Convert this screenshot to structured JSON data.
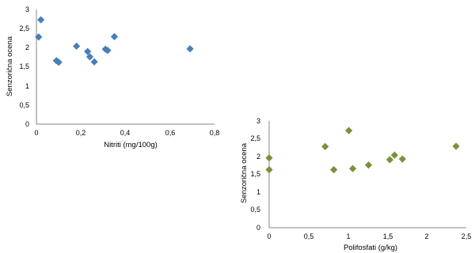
{
  "chart_data": [
    {
      "type": "scatter",
      "xlabel": "Nitriti (mg/100g)",
      "ylabel": "Senzorična ocena",
      "xlim": [
        0,
        0.8
      ],
      "ylim": [
        0,
        3
      ],
      "x_ticks": [
        "0",
        "0,2",
        "0,4",
        "0,6",
        "0,8"
      ],
      "y_ticks": [
        "0",
        "0,5",
        "1",
        "1,5",
        "2",
        "2,5",
        "3"
      ],
      "marker_color": "#4a7ebb",
      "grid": false,
      "points": [
        {
          "x": 0.01,
          "y": 2.28
        },
        {
          "x": 0.02,
          "y": 2.73
        },
        {
          "x": 0.09,
          "y": 1.66
        },
        {
          "x": 0.1,
          "y": 1.62
        },
        {
          "x": 0.18,
          "y": 2.04
        },
        {
          "x": 0.23,
          "y": 1.9
        },
        {
          "x": 0.24,
          "y": 1.76
        },
        {
          "x": 0.26,
          "y": 1.63
        },
        {
          "x": 0.31,
          "y": 1.96
        },
        {
          "x": 0.32,
          "y": 1.93
        },
        {
          "x": 0.35,
          "y": 2.29
        },
        {
          "x": 0.69,
          "y": 1.97
        }
      ]
    },
    {
      "type": "scatter",
      "xlabel": "Polifosfati (g/kg)",
      "ylabel": "Senzorična ocena",
      "xlim": [
        0,
        2.5
      ],
      "ylim": [
        0,
        3
      ],
      "x_ticks": [
        "0",
        "0,5",
        "1",
        "1,5",
        "2",
        "2,5"
      ],
      "y_ticks": [
        "0",
        "0,5",
        "1",
        "1,5",
        "2",
        "2,5",
        "3"
      ],
      "marker_color": "#77933c",
      "grid": false,
      "points": [
        {
          "x": 0.0,
          "y": 1.96
        },
        {
          "x": 0.0,
          "y": 1.63
        },
        {
          "x": 0.71,
          "y": 2.28
        },
        {
          "x": 0.82,
          "y": 1.63
        },
        {
          "x": 1.01,
          "y": 2.73
        },
        {
          "x": 1.06,
          "y": 1.66
        },
        {
          "x": 1.26,
          "y": 1.76
        },
        {
          "x": 1.53,
          "y": 1.91
        },
        {
          "x": 1.59,
          "y": 2.04
        },
        {
          "x": 1.69,
          "y": 1.93
        },
        {
          "x": 2.37,
          "y": 2.29
        }
      ]
    }
  ]
}
